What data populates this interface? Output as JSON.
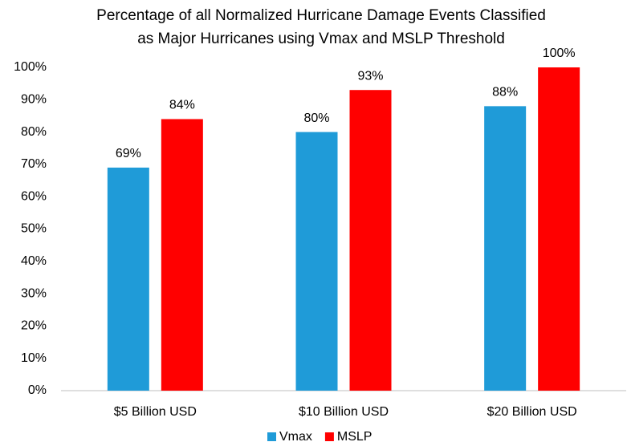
{
  "chart_data": {
    "type": "bar",
    "title": [
      "Percentage of all Normalized Hurricane Damage Events Classified",
      "as Major Hurricanes using Vmax and MSLP Threshold"
    ],
    "categories": [
      "$5 Billion USD",
      "$10 Billion USD",
      "$20 Billion USD"
    ],
    "series": [
      {
        "name": "Vmax",
        "color": "#1f9bd8",
        "values": [
          69,
          80,
          88
        ],
        "value_labels": [
          "69%",
          "80%",
          "88%"
        ]
      },
      {
        "name": "MSLP",
        "color": "#ff0000",
        "values": [
          84,
          93,
          100
        ],
        "value_labels": [
          "84%",
          "93%",
          "100%"
        ]
      }
    ],
    "ylim": [
      0,
      100
    ],
    "yticks": [
      {
        "value": 0,
        "label": "0%"
      },
      {
        "value": 10,
        "label": "10%"
      },
      {
        "value": 20,
        "label": "20%"
      },
      {
        "value": 30,
        "label": "30%"
      },
      {
        "value": 40,
        "label": "40%"
      },
      {
        "value": 50,
        "label": "50%"
      },
      {
        "value": 60,
        "label": "60%"
      },
      {
        "value": 70,
        "label": "70%"
      },
      {
        "value": 80,
        "label": "80%"
      },
      {
        "value": 90,
        "label": "90%"
      },
      {
        "value": 100,
        "label": "100%"
      }
    ],
    "grid": false,
    "legend": "bottom"
  }
}
